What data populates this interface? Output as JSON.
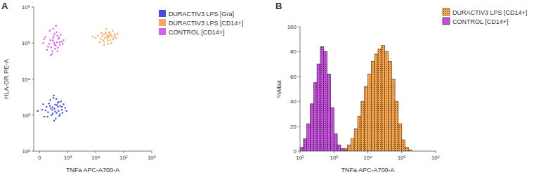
{
  "chart_data": [
    {
      "type": "scatter",
      "title": "A",
      "x_label": "TNFa APC-A700-A",
      "y_label": "HLA-DR PE-A",
      "log": true,
      "legend": "right",
      "xlim": [
        -100,
        1000000
      ],
      "xticks": [
        0,
        {
          "value": 1000,
          "label": "10³"
        },
        {
          "value": 10000,
          "label": "10⁴"
        },
        {
          "value": 100000,
          "label": "10⁵"
        },
        {
          "value": 1000000,
          "label": "10⁶"
        }
      ],
      "ylim": [
        100,
        1000000
      ],
      "yticks": [
        {
          "value": 100,
          "label": "10²"
        },
        {
          "value": 1000,
          "label": "10³"
        },
        {
          "value": 10000,
          "label": "10⁴"
        },
        {
          "value": 100000,
          "label": "10⁵"
        },
        {
          "value": 1000000,
          "label": "10⁶"
        }
      ],
      "series": [
        {
          "name": "DURACTIV3 LPS [Gra]",
          "color": "#3f51e0",
          "x": [
            310,
            150,
            520,
            80,
            420,
            260,
            600,
            200,
            350,
            450,
            120,
            700,
            280,
            40,
            390,
            230,
            560,
            330,
            170,
            480,
            260,
            640,
            100,
            370,
            210,
            520,
            300,
            430,
            60,
            800,
            250,
            380,
            140,
            460,
            330,
            -30,
            900,
            290,
            190,
            610
          ],
          "values": [
            1500,
            1200,
            1800,
            900,
            2200,
            1100,
            1400,
            2600,
            800,
            1300,
            1700,
            2000,
            3000,
            1400,
            1900,
            1000,
            2400,
            1250,
            2100,
            950,
            1650,
            1150,
            1350,
            2800,
            1550,
            1050,
            700,
            1700,
            2000,
            1600,
            1400,
            1150,
            900,
            2300,
            1950,
            1300,
            1300,
            3500,
            1800,
            1700
          ]
        },
        {
          "name": "DURACTIV3 LPS [CD14+]",
          "color": "#f4a95a",
          "x": [
            25000,
            15000,
            35000,
            20000,
            30000,
            12000,
            45000,
            22000,
            18000,
            40000,
            28000,
            10000,
            50000,
            26000,
            33000,
            16000,
            38000,
            24000,
            21000,
            60000,
            14000,
            30000,
            27000,
            19000,
            42000,
            23000,
            8000,
            36000,
            29000,
            17000,
            32000,
            47000,
            20000,
            26000,
            55000
          ],
          "values": [
            150000,
            130000,
            170000,
            110000,
            200000,
            160000,
            140000,
            180000,
            120000,
            220000,
            95000,
            140000,
            160000,
            130000,
            120000,
            190000,
            150000,
            250000,
            140000,
            180000,
            105000,
            160000,
            115000,
            170000,
            125000,
            200000,
            150000,
            100000,
            145000,
            155000,
            185000,
            175000,
            90000,
            165000,
            135000
          ]
        },
        {
          "name": "CONTROL [CD14+]",
          "color": "#d65ef0",
          "x": [
            300,
            150,
            450,
            250,
            380,
            200,
            520,
            100,
            330,
            600,
            280,
            170,
            410,
            240,
            350,
            480,
            60,
            310,
            220,
            700,
            390,
            130,
            270,
            550,
            320,
            190,
            430,
            260,
            650,
            80,
            360,
            210,
            500,
            290,
            410
          ],
          "values": [
            100000,
            80000,
            130000,
            60000,
            200000,
            120000,
            90000,
            150000,
            70000,
            110000,
            250000,
            95000,
            160000,
            50000,
            85000,
            140000,
            100000,
            180000,
            75000,
            120000,
            105000,
            65000,
            135000,
            170000,
            90000,
            220000,
            75000,
            115000,
            95000,
            130000,
            300000,
            45000,
            105000,
            155000,
            60000
          ]
        }
      ]
    },
    {
      "type": "histogram",
      "title": "B",
      "x_label": "TNFa APC-A700-A",
      "y_label": "%Max",
      "log": "x",
      "legend": "right",
      "xlim": [
        100,
        1000000
      ],
      "xticks": [
        {
          "value": 100,
          "label": "10²"
        },
        {
          "value": 1000,
          "label": "10³"
        },
        {
          "value": 10000,
          "label": "10⁴"
        },
        {
          "value": 100000,
          "label": "10⁵"
        },
        {
          "value": 1000000,
          "label": "10⁶"
        }
      ],
      "ylim": [
        0,
        100
      ],
      "yticks": [
        0,
        20,
        40,
        60,
        80,
        100
      ],
      "bins": [
        100,
        125.9,
        158.5,
        199.5,
        251.2,
        316.2,
        398.1,
        501.2,
        631,
        794.3,
        1000,
        1258.9,
        1584.9,
        1995.3,
        2511.9,
        3162.3,
        3981.1,
        5011.9,
        6309.6,
        7943.3,
        10000,
        12589,
        15849,
        19953,
        25119,
        31623,
        39811,
        50119,
        63096,
        79433,
        100000,
        125893,
        158489,
        199526,
        251189,
        316228
      ],
      "series": [
        {
          "name": "DURACTIV3 LPS [CD14+]",
          "color": "#f7a54b",
          "values": [
            0,
            0,
            0,
            0,
            0,
            0,
            0,
            0,
            0,
            0,
            0,
            0,
            1,
            2,
            5,
            10,
            18,
            28,
            40,
            52,
            62,
            72,
            78,
            82,
            85,
            80,
            72,
            58,
            40,
            22,
            9,
            3,
            1,
            0,
            0
          ]
        },
        {
          "name": "CONTROL [CD14+]",
          "color": "#c952df",
          "values": [
            3,
            10,
            22,
            38,
            55,
            70,
            84,
            80,
            62,
            35,
            14,
            5,
            2,
            1,
            0,
            0,
            0,
            0,
            0,
            0,
            0,
            0,
            0,
            0,
            0,
            0,
            0,
            0,
            0,
            0,
            0,
            0,
            0,
            0,
            0
          ]
        }
      ]
    }
  ]
}
